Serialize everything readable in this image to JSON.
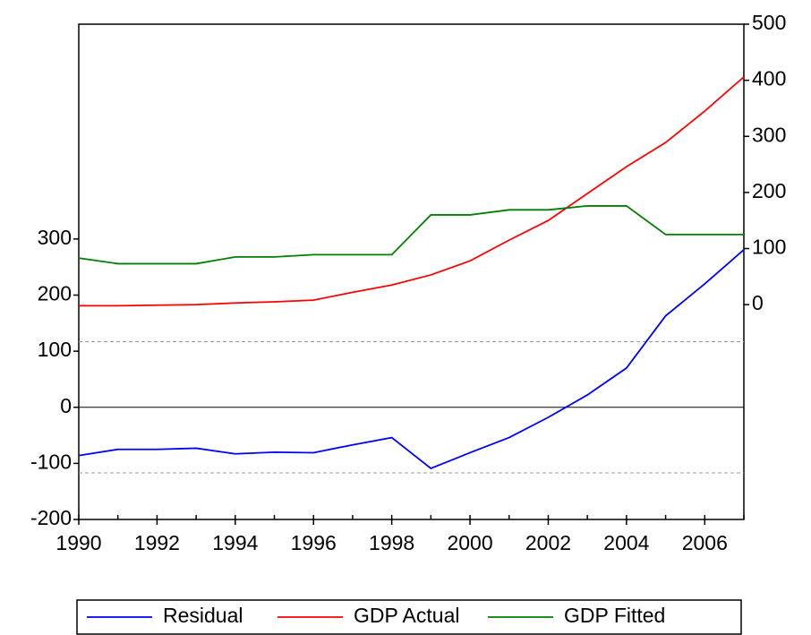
{
  "chart_data": {
    "type": "line",
    "x": [
      1990,
      1991,
      1992,
      1993,
      1994,
      1995,
      1996,
      1997,
      1998,
      1999,
      2000,
      2001,
      2002,
      2003,
      2004,
      2005,
      2006,
      2007
    ],
    "xlim": [
      1990,
      2007
    ],
    "xticks": [
      1990,
      1992,
      1994,
      1996,
      1998,
      2000,
      2002,
      2004,
      2006
    ],
    "ylim": [
      -200,
      683
    ],
    "yticks": [
      -200,
      -100,
      0,
      100,
      200,
      300
    ],
    "y2lim": [
      -383,
      500
    ],
    "y2ticks": [
      0,
      100,
      200,
      300,
      400,
      500
    ],
    "std_bands": [
      -117,
      117
    ],
    "legend": "bottom",
    "series": [
      {
        "name": "Residual",
        "color": "#0000ff",
        "values": [
          -86,
          -75,
          -75,
          -73,
          -83,
          -80,
          -81,
          -67,
          -54,
          -109,
          -81,
          -54,
          -18,
          22,
          70,
          163,
          220,
          281
        ]
      },
      {
        "name": "GDP Actual",
        "color": "#ff0000",
        "axis": "y2",
        "values": [
          -2,
          -2,
          -1,
          0,
          3,
          5,
          8,
          22,
          35,
          53,
          78,
          115,
          150,
          198,
          246,
          289,
          345,
          406
        ]
      },
      {
        "name": "GDP Fitted",
        "color": "#008000",
        "axis": "y2",
        "values": [
          83,
          73,
          73,
          73,
          85,
          85,
          89,
          89,
          89,
          160,
          160,
          169,
          169,
          176,
          176,
          125,
          125,
          125
        ]
      }
    ]
  }
}
